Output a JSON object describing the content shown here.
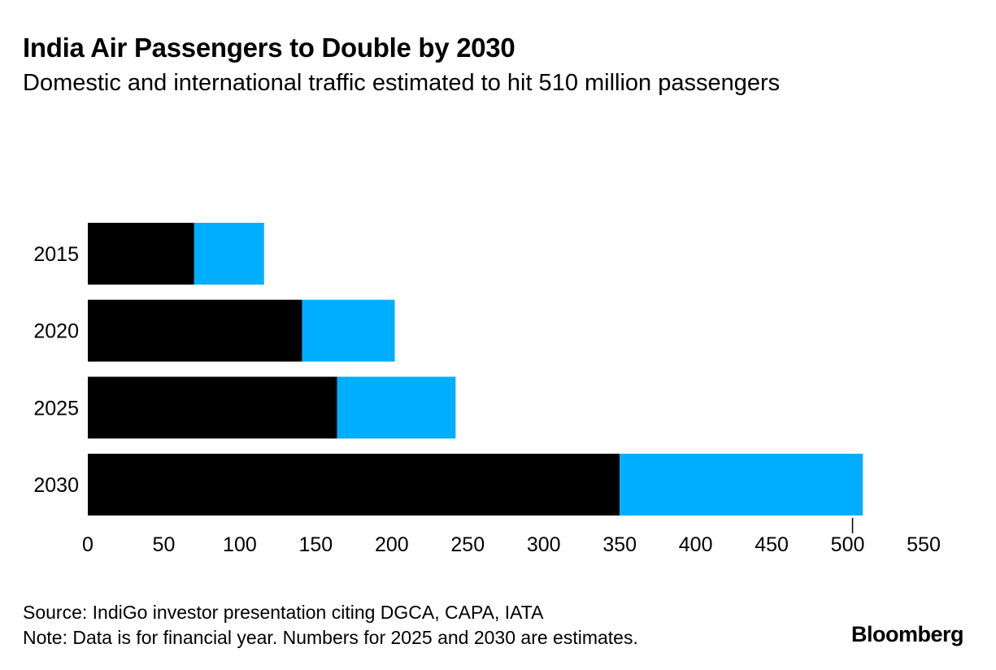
{
  "header": {
    "title": "India Air Passengers to Double by 2030",
    "subtitle": "Domestic and international traffic estimated to hit 510 million passengers"
  },
  "chart_data": {
    "type": "bar",
    "orientation": "horizontal",
    "stacked": true,
    "categories": [
      "2015",
      "2020",
      "2025",
      "2030"
    ],
    "series": [
      {
        "values": [
          70,
          141,
          164,
          350
        ],
        "color": "#000000"
      },
      {
        "values": [
          46,
          61,
          78,
          160
        ],
        "color": "#00aeff"
      }
    ],
    "xlim": [
      0,
      550
    ],
    "xticks": [
      0,
      50,
      100,
      150,
      200,
      250,
      300,
      350,
      400,
      450,
      500,
      550
    ],
    "reference_tick": 500,
    "grid": false,
    "legend": "none"
  },
  "footer": {
    "source": "Source: IndiGo investor presentation citing DGCA, CAPA, IATA",
    "note": "Note: Data is for financial year. Numbers for 2025 and 2030 are estimates.",
    "logo": "Bloomberg"
  }
}
